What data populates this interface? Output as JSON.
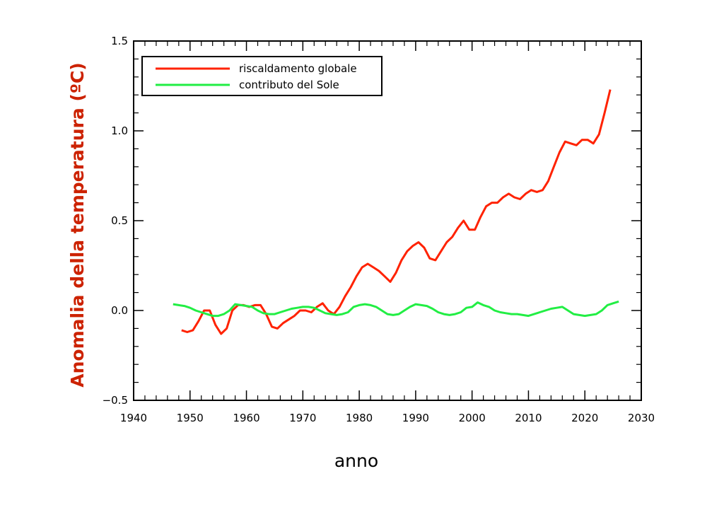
{
  "chart_data": {
    "type": "line",
    "xlabel": "anno",
    "ylabel": "Anomalia della temperatura (ºC)",
    "ylabel_color": "#cc2200",
    "xlim": [
      1940,
      2030
    ],
    "ylim": [
      -0.5,
      1.5
    ],
    "x_ticks": [
      1940,
      1950,
      1960,
      1970,
      1980,
      1990,
      2000,
      2010,
      2020,
      2030
    ],
    "y_ticks": [
      -0.5,
      0.0,
      0.5,
      1.0,
      1.5
    ],
    "y_tick_labels": [
      "−0.5",
      "0.0",
      "0.5",
      "1.0",
      "1.5"
    ],
    "grid": false,
    "legend_position": "top-left",
    "series": [
      {
        "name": "riscaldamento globale",
        "color": "#ff2200",
        "x": [
          1948.5,
          1949.5,
          1950.5,
          1951.5,
          1952.5,
          1953.5,
          1954.5,
          1955.5,
          1956.5,
          1957.5,
          1958.5,
          1959.5,
          1960.5,
          1961.5,
          1962.5,
          1963.5,
          1964.5,
          1965.5,
          1966.5,
          1967.5,
          1968.5,
          1969.5,
          1970.5,
          1971.5,
          1972.5,
          1973.5,
          1974.5,
          1975.5,
          1976.5,
          1977.5,
          1978.5,
          1979.5,
          1980.5,
          1981.5,
          1982.5,
          1983.5,
          1984.5,
          1985.5,
          1986.5,
          1987.5,
          1988.5,
          1989.5,
          1990.5,
          1991.5,
          1992.5,
          1993.5,
          1994.5,
          1995.5,
          1996.5,
          1997.5,
          1998.5,
          1999.5,
          2000.5,
          2001.5,
          2002.5,
          2003.5,
          2004.5,
          2005.5,
          2006.5,
          2007.5,
          2008.5,
          2009.5,
          2010.5,
          2011.5,
          2012.5,
          2013.5,
          2014.5,
          2015.5,
          2016.5,
          2017.5,
          2018.5,
          2019.5,
          2020.5,
          2021.5,
          2022.5,
          2023.5,
          2024.5
        ],
        "y": [
          -0.11,
          -0.12,
          -0.11,
          -0.06,
          0.0,
          0.0,
          -0.08,
          -0.13,
          -0.1,
          0.0,
          0.03,
          0.03,
          0.02,
          0.03,
          0.03,
          -0.02,
          -0.09,
          -0.1,
          -0.07,
          -0.05,
          -0.03,
          0.0,
          0.0,
          -0.01,
          0.02,
          0.04,
          0.0,
          -0.02,
          0.02,
          0.08,
          0.13,
          0.19,
          0.24,
          0.26,
          0.24,
          0.22,
          0.19,
          0.16,
          0.21,
          0.28,
          0.33,
          0.36,
          0.38,
          0.35,
          0.29,
          0.28,
          0.33,
          0.38,
          0.41,
          0.46,
          0.5,
          0.45,
          0.45,
          0.52,
          0.58,
          0.6,
          0.6,
          0.63,
          0.65,
          0.63,
          0.62,
          0.65,
          0.67,
          0.66,
          0.67,
          0.72,
          0.8,
          0.88,
          0.94,
          0.93,
          0.92,
          0.95,
          0.95,
          0.93,
          0.98,
          1.1,
          1.23
        ]
      },
      {
        "name": "contributo del Sole",
        "color": "#22ee44",
        "x": [
          1947.0,
          1948.0,
          1949.0,
          1950.0,
          1951.0,
          1952.0,
          1953.0,
          1954.0,
          1955.0,
          1956.0,
          1957.0,
          1958.0,
          1959.0,
          1960.0,
          1961.0,
          1962.0,
          1963.0,
          1964.0,
          1965.0,
          1966.0,
          1967.0,
          1968.0,
          1969.0,
          1970.0,
          1971.0,
          1972.0,
          1973.0,
          1974.0,
          1975.0,
          1976.0,
          1977.0,
          1978.0,
          1979.0,
          1980.0,
          1981.0,
          1982.0,
          1983.0,
          1984.0,
          1985.0,
          1986.0,
          1987.0,
          1988.0,
          1989.0,
          1990.0,
          1991.0,
          1992.0,
          1993.0,
          1994.0,
          1995.0,
          1996.0,
          1997.0,
          1998.0,
          1999.0,
          2000.0,
          2001.0,
          2002.0,
          2003.0,
          2004.0,
          2005.0,
          2006.0,
          2007.0,
          2008.0,
          2009.0,
          2010.0,
          2011.0,
          2012.0,
          2013.0,
          2014.0,
          2015.0,
          2016.0,
          2017.0,
          2018.0,
          2019.0,
          2020.0,
          2021.0,
          2022.0,
          2023.0,
          2024.0,
          2025.0,
          2026.0
        ],
        "y": [
          0.035,
          0.03,
          0.025,
          0.015,
          0.0,
          -0.01,
          -0.02,
          -0.03,
          -0.03,
          -0.02,
          0.0,
          0.035,
          0.03,
          0.025,
          0.02,
          0.0,
          -0.015,
          -0.02,
          -0.02,
          -0.01,
          0.0,
          0.01,
          0.015,
          0.02,
          0.02,
          0.015,
          0.0,
          -0.015,
          -0.02,
          -0.025,
          -0.02,
          -0.01,
          0.02,
          0.03,
          0.035,
          0.03,
          0.02,
          0.0,
          -0.02,
          -0.025,
          -0.02,
          0.0,
          0.02,
          0.035,
          0.03,
          0.025,
          0.01,
          -0.01,
          -0.02,
          -0.025,
          -0.02,
          -0.01,
          0.015,
          0.02,
          0.045,
          0.03,
          0.02,
          0.0,
          -0.01,
          -0.015,
          -0.02,
          -0.02,
          -0.025,
          -0.03,
          -0.02,
          -0.01,
          0.0,
          0.01,
          0.015,
          0.02,
          0.0,
          -0.02,
          -0.025,
          -0.03,
          -0.025,
          -0.02,
          0.0,
          0.03,
          0.04,
          0.05
        ]
      }
    ]
  }
}
